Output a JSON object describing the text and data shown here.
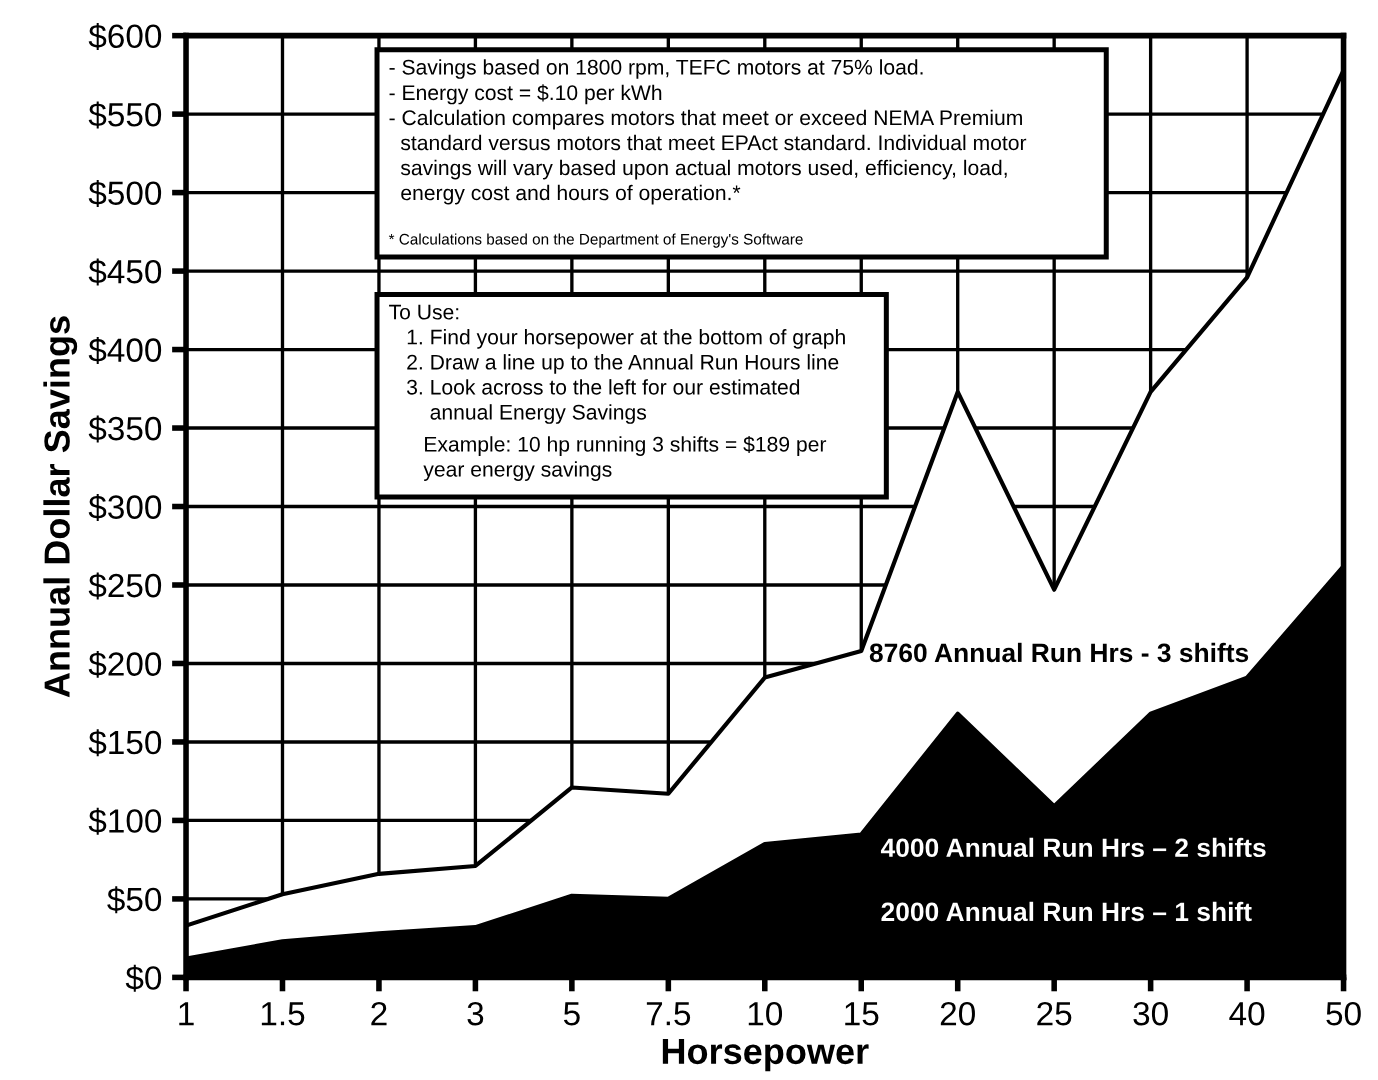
{
  "chart_data": {
    "type": "area",
    "xlabel": "Horsepower",
    "ylabel": "Annual Dollar Savings",
    "categories": [
      "1",
      "1.5",
      "2",
      "3",
      "5",
      "7.5",
      "10",
      "15",
      "20",
      "25",
      "30",
      "40",
      "50"
    ],
    "series": [
      {
        "color": "#ffffff",
        "values": [
          33,
          53,
          66,
          71,
          121,
          117,
          191,
          208,
          373,
          247,
          373,
          446,
          578
        ]
      },
      {
        "color": "#000000",
        "values": [
          12,
          23,
          28,
          32,
          52,
          50,
          85,
          91,
          168,
          109,
          168,
          191,
          262
        ]
      }
    ],
    "ylim": [
      0,
      600
    ],
    "yticks": [
      {
        "value": 0,
        "label": "$0"
      },
      {
        "value": 50,
        "label": "$50"
      },
      {
        "value": 100,
        "label": "$100"
      },
      {
        "value": 150,
        "label": "$150"
      },
      {
        "value": 200,
        "label": "$200"
      },
      {
        "value": 250,
        "label": "$250"
      },
      {
        "value": 300,
        "label": "$300"
      },
      {
        "value": 350,
        "label": "$350"
      },
      {
        "value": 400,
        "label": "$400"
      },
      {
        "value": 450,
        "label": "$450"
      },
      {
        "value": 500,
        "label": "$500"
      },
      {
        "value": 550,
        "label": "$550"
      },
      {
        "value": 600,
        "label": "$600"
      }
    ],
    "grid": true,
    "annotations": [
      "- Savings based on 1800 rpm, TEFC motors at 75% load.\n- Energy cost = $.10 per kWh\n- Calculation compares motors that meet or exceed NEMA Premium\n  standard versus motors that meet EPAct standard. Individual motor\n  savings will vary based upon actual motors used, efficiency, load,\n  energy cost and hours of operation.*",
      "* Calculations based on the Department of Energy's Software",
      "To Use:\n   1. Find your horsepower at the bottom of graph\n   2. Draw a line up to the Annual Run Hours line\n   3. Look across to the left for our estimated\n       annual Energy Savings",
      "Example: 10 hp running 3 shifts = $189 per\nyear energy savings",
      "8760 Annual Run Hrs - 3 shifts",
      "4000 Annual Run Hrs – 2 shifts",
      "2000 Annual Run Hrs – 1 shift"
    ]
  }
}
